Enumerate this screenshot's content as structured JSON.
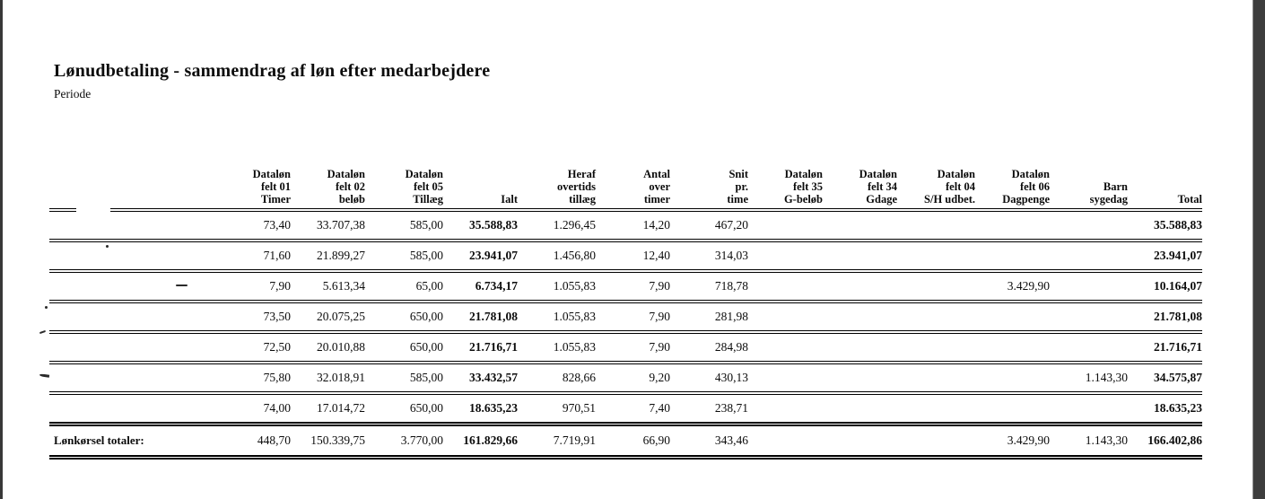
{
  "page": {
    "title": "Lønudbetaling - sammendrag af løn efter medarbejdere",
    "subtitle": "Periode"
  },
  "table": {
    "columns": [
      {
        "key": "employee",
        "header": ""
      },
      {
        "key": "timer",
        "header": "Dataløn\nfelt 01\nTimer"
      },
      {
        "key": "belob",
        "header": "Dataløn\nfelt 02\nbeløb"
      },
      {
        "key": "tillaeg",
        "header": "Dataløn\nfelt 05\nTillæg"
      },
      {
        "key": "ialt",
        "header": "Ialt"
      },
      {
        "key": "heraf-overtids",
        "header": "Heraf\novertids\ntillæg"
      },
      {
        "key": "antal-over",
        "header": "Antal\nover\ntimer"
      },
      {
        "key": "snit-pr-time",
        "header": "Snit\npr.\ntime"
      },
      {
        "key": "g-belob",
        "header": "Dataløn\nfelt 35\nG-beløb"
      },
      {
        "key": "gdage",
        "header": "Dataløn\nfelt 34\nGdage"
      },
      {
        "key": "sh-udbet",
        "header": "Dataløn\nfelt 04\nS/H udbet."
      },
      {
        "key": "dagpenge",
        "header": "Dataløn\nfelt 06\nDagpenge"
      },
      {
        "key": "barn-sygedag",
        "header": "Barn\nsygedag"
      },
      {
        "key": "total",
        "header": "Total"
      }
    ],
    "rows": [
      {
        "name": "",
        "values": [
          "73,40",
          "33.707,38",
          "585,00",
          "35.588,83",
          "1.296,45",
          "14,20",
          "467,20",
          "",
          "",
          "",
          "",
          "",
          "35.588,83"
        ]
      },
      {
        "name": "",
        "values": [
          "71,60",
          "21.899,27",
          "585,00",
          "23.941,07",
          "1.456,80",
          "12,40",
          "314,03",
          "",
          "",
          "",
          "",
          "",
          "23.941,07"
        ]
      },
      {
        "name": "",
        "values": [
          "7,90",
          "5.613,34",
          "65,00",
          "6.734,17",
          "1.055,83",
          "7,90",
          "718,78",
          "",
          "",
          "",
          "3.429,90",
          "",
          "10.164,07"
        ]
      },
      {
        "name": "",
        "values": [
          "73,50",
          "20.075,25",
          "650,00",
          "21.781,08",
          "1.055,83",
          "7,90",
          "281,98",
          "",
          "",
          "",
          "",
          "",
          "21.781,08"
        ]
      },
      {
        "name": "",
        "values": [
          "72,50",
          "20.010,88",
          "650,00",
          "21.716,71",
          "1.055,83",
          "7,90",
          "284,98",
          "",
          "",
          "",
          "",
          "",
          "21.716,71"
        ]
      },
      {
        "name": "",
        "values": [
          "75,80",
          "32.018,91",
          "585,00",
          "33.432,57",
          "828,66",
          "9,20",
          "430,13",
          "",
          "",
          "",
          "",
          "1.143,30",
          "34.575,87"
        ]
      },
      {
        "name": "",
        "values": [
          "74,00",
          "17.014,72",
          "650,00",
          "18.635,23",
          "970,51",
          "7,40",
          "238,71",
          "",
          "",
          "",
          "",
          "",
          "18.635,23"
        ]
      }
    ],
    "totals": {
      "label": "Lønkørsel totaler:",
      "values": [
        "448,70",
        "150.339,75",
        "3.770,00",
        "161.829,66",
        "7.719,91",
        "66,90",
        "343,46",
        "",
        "",
        "",
        "3.429,90",
        "1.143,30",
        "166.402,86"
      ]
    }
  }
}
